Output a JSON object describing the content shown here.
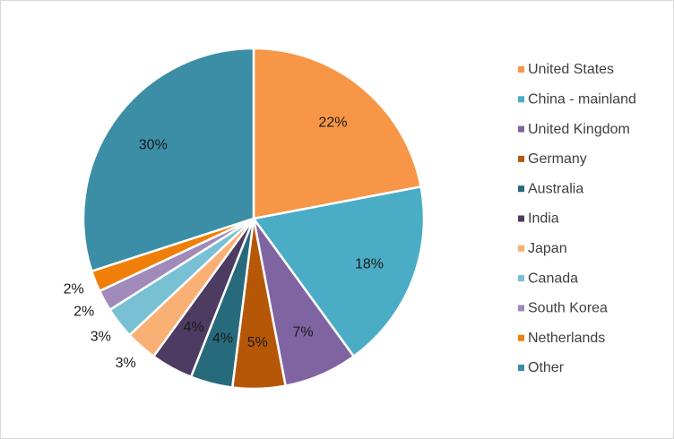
{
  "chart_data": {
    "type": "pie",
    "title": "",
    "legend_position": "right",
    "categories": [
      "United States",
      "China - mainland",
      "United Kingdom",
      "Germany",
      "Australia",
      "India",
      "Japan",
      "Canada",
      "South Korea",
      "Netherlands",
      "Other"
    ],
    "values": [
      22,
      18,
      7,
      5,
      4,
      4,
      3,
      3,
      2,
      2,
      30
    ],
    "labels": [
      "22%",
      "18%",
      "7%",
      "5%",
      "4%",
      "4%",
      "3%",
      "3%",
      "2%",
      "2%",
      "30%"
    ],
    "colors": [
      "#F79646",
      "#4BACC6",
      "#8064A2",
      "#B65708",
      "#276A7C",
      "#4D3B62",
      "#F9B074",
      "#78C0D4",
      "#9F8AB9",
      "#F07F09",
      "#3B8EA5"
    ]
  }
}
